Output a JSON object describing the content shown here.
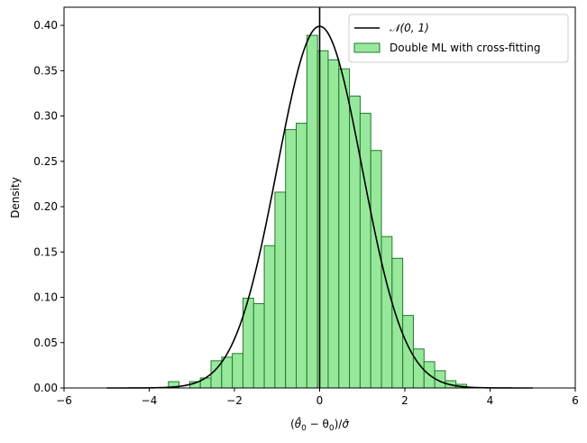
{
  "chart_data": {
    "type": "histogram",
    "title": "",
    "xlabel_parts": [
      "(",
      "θ̂",
      "0",
      " − θ",
      "0",
      ")/",
      "σ̂"
    ],
    "ylabel": "Density",
    "xlim": [
      -6,
      6
    ],
    "ylim": [
      0,
      0.42
    ],
    "xticks": [
      -6,
      -4,
      -2,
      0,
      2,
      4,
      6
    ],
    "xtick_labels": [
      "−6",
      "−4",
      "−2",
      "0",
      "2",
      "4",
      "6"
    ],
    "yticks": [
      0.0,
      0.05,
      0.1,
      0.15,
      0.2,
      0.25,
      0.3,
      0.35,
      0.4
    ],
    "ytick_labels": [
      "0.00",
      "0.05",
      "0.10",
      "0.15",
      "0.20",
      "0.25",
      "0.30",
      "0.35",
      "0.40"
    ],
    "grid": false,
    "legend_position": "top-right",
    "bin_edges": [
      -3.55,
      -3.3,
      -3.05,
      -2.8,
      -2.55,
      -2.3,
      -2.05,
      -1.8,
      -1.55,
      -1.3,
      -1.05,
      -0.8,
      -0.55,
      -0.3,
      -0.05,
      0.2,
      0.45,
      0.7,
      0.95,
      1.2,
      1.45,
      1.7,
      1.95,
      2.2,
      2.45,
      2.7,
      2.95,
      3.2,
      3.45
    ],
    "densities": [
      0.007,
      0.0,
      0.007,
      0.011,
      0.03,
      0.034,
      0.038,
      0.099,
      0.093,
      0.157,
      0.216,
      0.285,
      0.292,
      0.389,
      0.372,
      0.362,
      0.352,
      0.322,
      0.303,
      0.262,
      0.167,
      0.143,
      0.08,
      0.043,
      0.029,
      0.019,
      0.008,
      0.004
    ],
    "series": [
      {
        "name": "𝒩(0, 1)",
        "kind": "line",
        "function": "standard-normal-pdf",
        "x_range": [
          -5,
          5
        ],
        "color": "#000000"
      },
      {
        "name": "Double ML with cross-fitting",
        "kind": "histogram",
        "fill_color": "#98e89c",
        "edge_color": "#227a2c"
      }
    ],
    "vertical_line": {
      "x": 0,
      "color": "#000000"
    }
  }
}
